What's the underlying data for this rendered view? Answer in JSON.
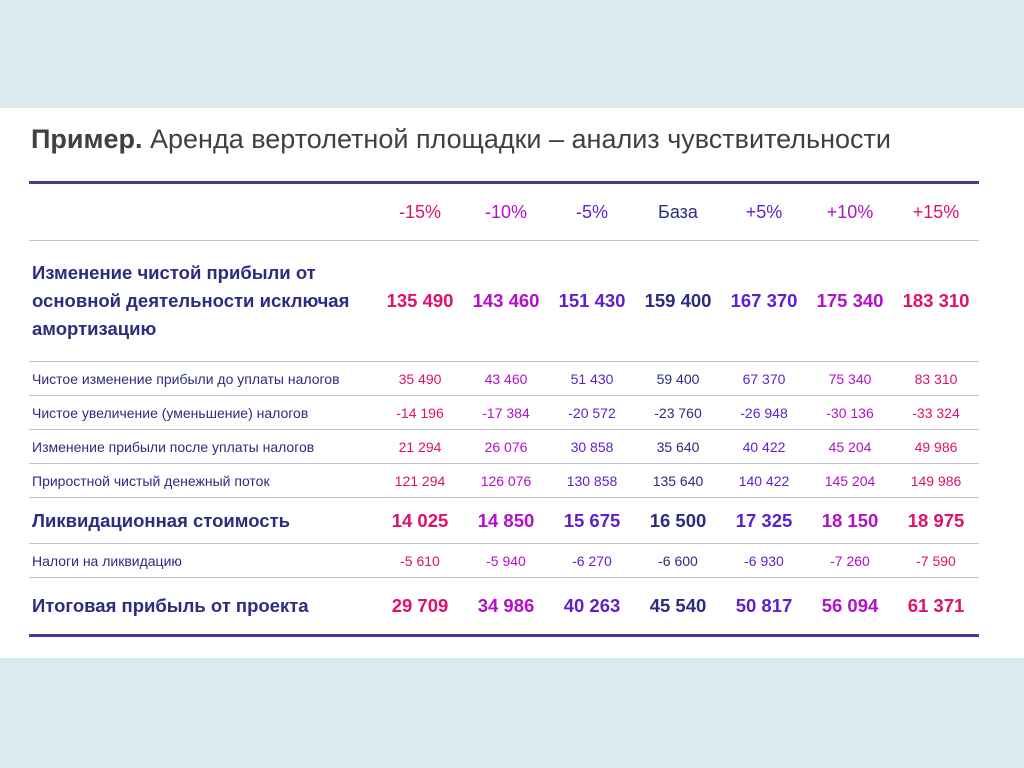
{
  "title": {
    "lead": "Пример.",
    "text": "Аренда вертолетной площадки – анализ чувствительности"
  },
  "header": [
    "-15%",
    "-10%",
    "-5%",
    "База",
    "+5%",
    "+10%",
    "+15%"
  ],
  "rows": [
    {
      "label": "Изменение чистой прибыли от основной деятельности исключая амортизацию",
      "values": [
        "135 490",
        "143 460",
        "151 430",
        "159 400",
        "167 370",
        "175 340",
        "183 310"
      ]
    },
    {
      "label": "Чистое изменение прибыли до уплаты налогов",
      "values": [
        "35 490",
        "43 460",
        "51 430",
        "59 400",
        "67 370",
        "75 340",
        "83 310"
      ]
    },
    {
      "label": "Чистое увеличение (уменьшение) налогов",
      "values": [
        "-14 196",
        "-17 384",
        "-20 572",
        "-23 760",
        "-26 948",
        "-30 136",
        "-33 324"
      ]
    },
    {
      "label": "Изменение прибыли после уплаты налогов",
      "values": [
        "21 294",
        "26 076",
        "30 858",
        "35 640",
        "40 422",
        "45 204",
        "49 986"
      ]
    },
    {
      "label": "Приростной чистый денежный поток",
      "values": [
        "121 294",
        "126 076",
        "130 858",
        "135 640",
        "140 422",
        "145 204",
        "149 986"
      ]
    },
    {
      "label": "Ликвидационная стоимость",
      "values": [
        "14 025",
        "14 850",
        "15 675",
        "16 500",
        "17 325",
        "18 150",
        "18 975"
      ]
    },
    {
      "label": "Налоги на ликвидацию",
      "values": [
        "-5 610",
        "-5 940",
        "-6 270",
        "-6 600",
        "-6 930",
        "-7 260",
        "-7 590"
      ]
    },
    {
      "label": "Итоговая прибыль от проекта",
      "values": [
        "29 709",
        "34 986",
        "40 263",
        "45 540",
        "50 817",
        "56 094",
        "61 371"
      ]
    }
  ],
  "colors": {
    "band": "#dbeaef",
    "rule": "#3f3e94",
    "label": "#2c2c80",
    "column_palette": [
      "#e0106b",
      "#b211c9",
      "#5e1fcc",
      "#2c2c80",
      "#5e1fcc",
      "#b211c9",
      "#e0106b"
    ]
  }
}
